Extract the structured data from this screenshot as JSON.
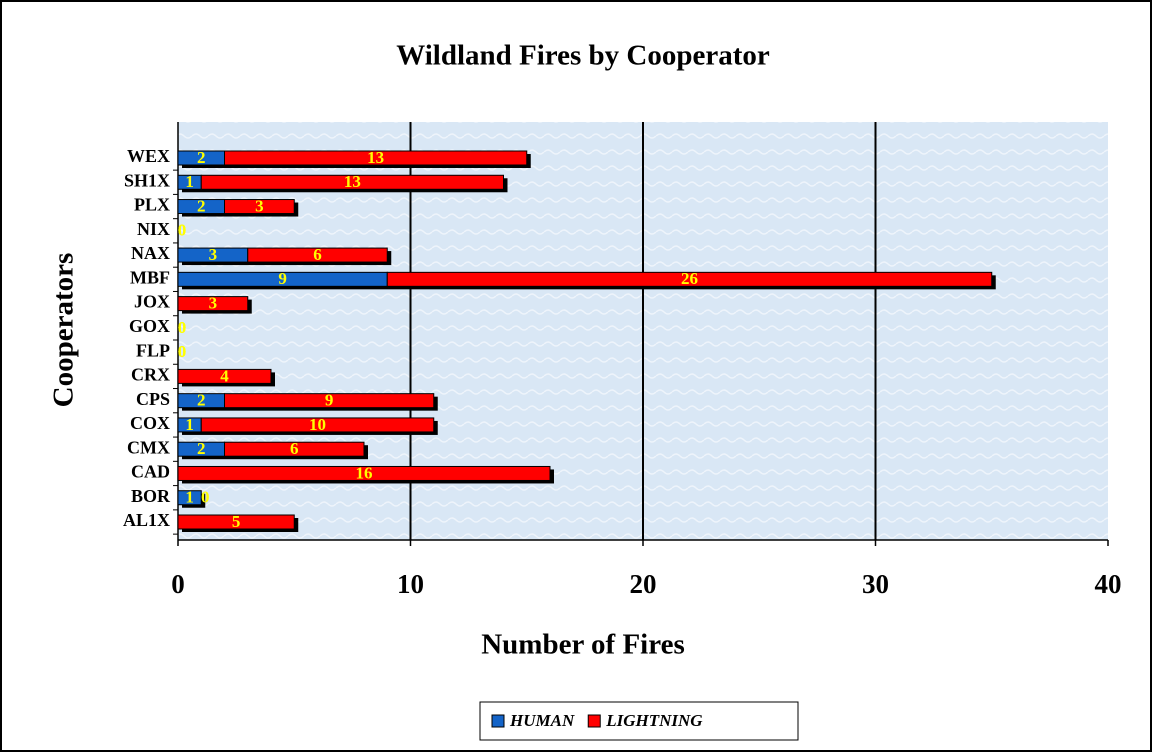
{
  "chart_data": {
    "type": "bar",
    "orientation": "horizontal",
    "stacked": true,
    "title": "Wildland Fires by Cooperator",
    "x_label": "Number of Fires",
    "y_label": "Cooperators",
    "categories": [
      "AL1X",
      "BOR",
      "CAD",
      "CMX",
      "COX",
      "CPS",
      "CRX",
      "FLP",
      "GOX",
      "JOX",
      "MBF",
      "NAX",
      "NIX",
      "PLX",
      "SH1X",
      "WEX"
    ],
    "series": [
      {
        "name": "HUMAN",
        "color": "#1464c8",
        "values": [
          0,
          1,
          0,
          2,
          1,
          2,
          0,
          0,
          0,
          0,
          9,
          3,
          0,
          2,
          1,
          2
        ]
      },
      {
        "name": "LIGHTNING",
        "color": "#ff0000",
        "values": [
          5,
          0,
          16,
          6,
          10,
          9,
          4,
          0,
          0,
          3,
          26,
          6,
          0,
          3,
          13,
          13
        ]
      }
    ],
    "xlim": [
      0,
      40
    ],
    "xticks": [
      0,
      10,
      20,
      30,
      40
    ],
    "grid": true,
    "legend": "bottom"
  }
}
